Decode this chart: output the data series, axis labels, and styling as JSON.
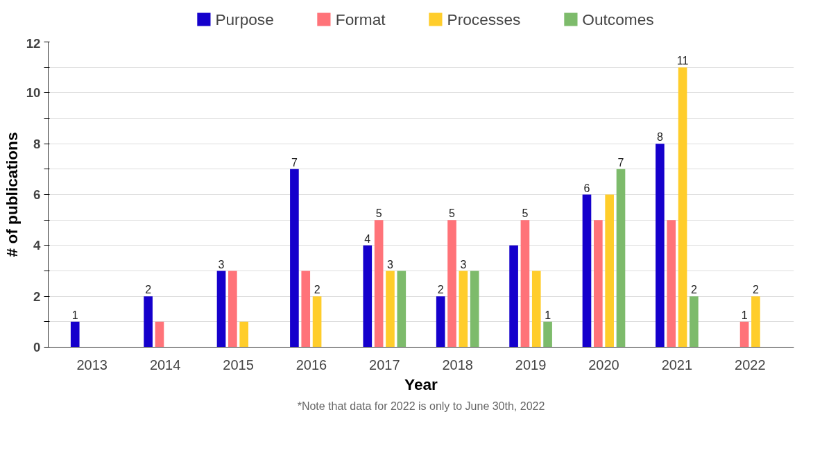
{
  "chart_data": {
    "type": "bar",
    "xlabel": "Year",
    "ylabel": "# of publications",
    "categories": [
      "2013",
      "2014",
      "2015",
      "2016",
      "2017",
      "2018",
      "2019",
      "2020",
      "2021",
      "2022"
    ],
    "series": [
      {
        "name": "Purpose",
        "color": "#1500cc",
        "values": [
          1,
          2,
          3,
          7,
          4,
          2,
          4,
          6,
          8,
          null
        ],
        "value_labels": [
          "1",
          "2",
          "3",
          "7",
          "4",
          "2",
          null,
          "6",
          "8",
          null
        ]
      },
      {
        "name": "Format",
        "color": "#ff7379",
        "values": [
          null,
          1,
          3,
          3,
          5,
          5,
          5,
          5,
          5,
          1
        ],
        "value_labels": [
          null,
          null,
          null,
          null,
          "5",
          "5",
          "5",
          null,
          null,
          "1"
        ]
      },
      {
        "name": "Processes",
        "color": "#ffcd2b",
        "values": [
          null,
          null,
          1,
          2,
          3,
          3,
          3,
          6,
          11,
          2
        ],
        "value_labels": [
          null,
          null,
          null,
          "2",
          "3",
          "3",
          null,
          null,
          "11",
          "2"
        ]
      },
      {
        "name": "Outcomes",
        "color": "#7dbb6b",
        "values": [
          null,
          null,
          null,
          null,
          3,
          3,
          1,
          7,
          2,
          null
        ],
        "value_labels": [
          null,
          null,
          null,
          null,
          null,
          null,
          "1",
          "7",
          "2",
          null
        ]
      }
    ],
    "ylim": [
      0,
      12
    ],
    "yticks": [
      0,
      {
        "value": 1,
        "label": null
      },
      2,
      {
        "value": 3,
        "label": null
      },
      4,
      {
        "value": 5,
        "label": null
      },
      6,
      {
        "value": 7,
        "label": null
      },
      8,
      {
        "value": 9,
        "label": null
      },
      10,
      {
        "value": 11,
        "label": null
      },
      12
    ],
    "grid": "y",
    "legend": "top",
    "annotations": [
      "*Note that data for 2022 is only to June 30th, 2022"
    ]
  }
}
